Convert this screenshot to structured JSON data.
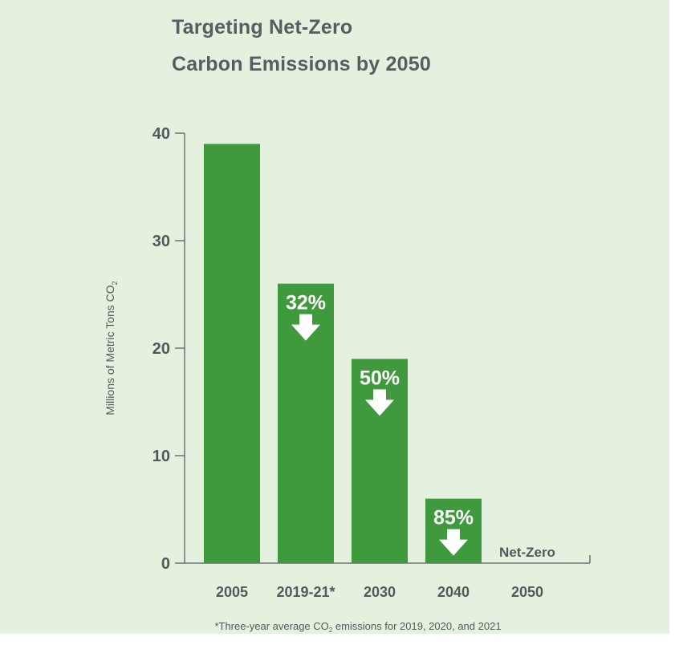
{
  "chart_data": {
    "type": "bar",
    "title_lines": [
      "Targeting Net-Zero",
      "Carbon Emissions by 2050"
    ],
    "ylabel": "Millions of Metric Tons CO",
    "ylabel_subscript": "2",
    "ylim": [
      0,
      40
    ],
    "yticks": [
      0,
      10,
      20,
      30,
      40
    ],
    "categories": [
      "2005",
      "2019-21*",
      "2030",
      "2040",
      "2050"
    ],
    "values": [
      39,
      26,
      19,
      6,
      0
    ],
    "reduction_labels": [
      "",
      "32%",
      "50%",
      "85%",
      ""
    ],
    "net_zero_label": "Net-Zero",
    "footnote_parts": [
      "*Three-year average CO",
      "2",
      " emissions for 2019, 2020, and 2021"
    ],
    "colors": {
      "background": "#e5f1df",
      "bar": "#3f9a3d",
      "axis": "#6e7173",
      "text": "#55585b",
      "label": "#ffffff"
    }
  }
}
